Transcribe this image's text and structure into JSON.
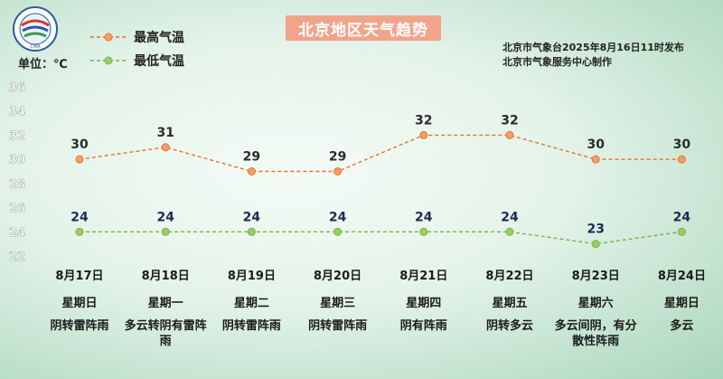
{
  "title": "北京地区天气趋势",
  "unit_label": "单位：℃",
  "publisher": [
    "北京市气象台2025年8月16日11时发布",
    "北京市气象服务中心制作"
  ],
  "legend": [
    {
      "label": "最高气温",
      "color": "#e8732a"
    },
    {
      "label": "最低气温",
      "color": "#7cb342"
    }
  ],
  "days": [
    {
      "date": "8月17日",
      "weekday": "星期日",
      "weather": "阴转雷阵雨"
    },
    {
      "date": "8月18日",
      "weekday": "星期一",
      "weather": "多云转阴有雷阵雨"
    },
    {
      "date": "8月19日",
      "weekday": "星期二",
      "weather": "阴转雷阵雨"
    },
    {
      "date": "8月20日",
      "weekday": "星期三",
      "weather": "阴转雷阵雨"
    },
    {
      "date": "8月21日",
      "weekday": "星期四",
      "weather": "阴有阵雨"
    },
    {
      "date": "8月22日",
      "weekday": "星期五",
      "weather": "阴转多云"
    },
    {
      "date": "8月23日",
      "weekday": "星期六",
      "weather": "多云间阴，有分散性阵雨"
    },
    {
      "date": "8月24日",
      "weekday": "星期日",
      "weather": "多云"
    }
  ],
  "chart_data": {
    "type": "line",
    "x": [
      "8月17日",
      "8月18日",
      "8月19日",
      "8月20日",
      "8月21日",
      "8月22日",
      "8月23日",
      "8月24日"
    ],
    "series": [
      {
        "name": "最高气温",
        "values": [
          30,
          31,
          29,
          29,
          32,
          32,
          30,
          30
        ],
        "color": "#e8732a"
      },
      {
        "name": "最低气温",
        "values": [
          24,
          24,
          24,
          24,
          24,
          24,
          23,
          24
        ],
        "color": "#7cb342"
      }
    ],
    "yticks": [
      22,
      24,
      26,
      28,
      30,
      32,
      34,
      36
    ],
    "ylim": [
      22,
      36
    ],
    "ylabel": "单位：℃",
    "grid": false,
    "data_labels": true
  }
}
